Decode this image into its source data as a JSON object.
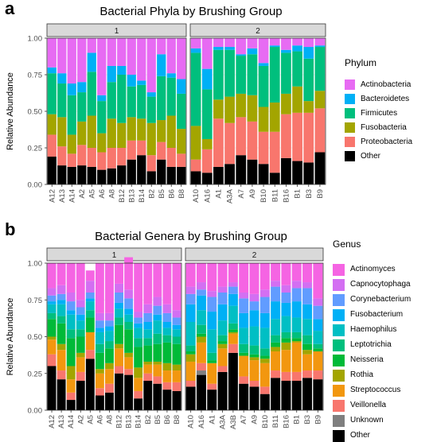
{
  "figure": {
    "panel_a_letter": "a",
    "panel_b_letter": "b"
  },
  "chart_data": [
    {
      "type": "bar",
      "stacked": true,
      "title": "Bacterial Phyla by Brushing Group",
      "ylabel": "Relative Abundance",
      "xlabel": "",
      "ylim": [
        0,
        1
      ],
      "yticks": [
        "0.00",
        "0.25",
        "0.50",
        "0.75",
        "1.00"
      ],
      "grid": true,
      "legend_title": "Phylum",
      "legend_position": "right",
      "facets": [
        {
          "label": "1",
          "categories": [
            "A12",
            "A13",
            "A14",
            "A2",
            "A5",
            "A6",
            "A8",
            "B12",
            "B13",
            "B14",
            "B2",
            "B5",
            "B6",
            "B8"
          ]
        },
        {
          "label": "2",
          "categories": [
            "A10",
            "A16",
            "A1",
            "A3A",
            "A7",
            "A9",
            "B10",
            "B11",
            "B16",
            "B1",
            "B3",
            "B9"
          ]
        }
      ],
      "series": [
        {
          "name": "Other",
          "color": "#000000",
          "facet_values": [
            [
              0.19,
              0.13,
              0.12,
              0.13,
              0.12,
              0.1,
              0.11,
              0.13,
              0.17,
              0.2,
              0.09,
              0.17,
              0.12,
              0.12
            ],
            [
              0.09,
              0.08,
              0.12,
              0.14,
              0.2,
              0.17,
              0.14,
              0.08,
              0.18,
              0.16,
              0.15,
              0.22
            ]
          ]
        },
        {
          "name": "Proteobacteria",
          "color": "#F8766D",
          "facet_values": [
            [
              0.15,
              0.13,
              0.09,
              0.14,
              0.13,
              0.12,
              0.14,
              0.12,
              0.13,
              0.1,
              0.11,
              0.12,
              0.13,
              0.09
            ],
            [
              0.08,
              0.16,
              0.33,
              0.28,
              0.26,
              0.26,
              0.22,
              0.28,
              0.3,
              0.33,
              0.34,
              0.3
            ]
          ]
        },
        {
          "name": "Fusobacteria",
          "color": "#A3A500",
          "facet_values": [
            [
              0.14,
              0.2,
              0.13,
              0.16,
              0.22,
              0.13,
              0.2,
              0.17,
              0.16,
              0.15,
              0.22,
              0.15,
              0.22,
              0.17
            ],
            [
              0.23,
              0.07,
              0.13,
              0.18,
              0.16,
              0.18,
              0.17,
              0.2,
              0.14,
              0.18,
              0.08,
              0.12
            ]
          ]
        },
        {
          "name": "Firmicutes",
          "color": "#00BF7D",
          "facet_values": [
            [
              0.28,
              0.23,
              0.27,
              0.2,
              0.3,
              0.22,
              0.25,
              0.33,
              0.21,
              0.23,
              0.18,
              0.3,
              0.26,
              0.24
            ],
            [
              0.5,
              0.34,
              0.34,
              0.32,
              0.26,
              0.28,
              0.28,
              0.38,
              0.28,
              0.24,
              0.29,
              0.3
            ]
          ]
        },
        {
          "name": "Bacteroidetes",
          "color": "#00B0F6",
          "facet_values": [
            [
              0.04,
              0.07,
              0.08,
              0.07,
              0.13,
              0.04,
              0.11,
              0.06,
              0.08,
              0.03,
              0.03,
              0.15,
              0.03,
              0.1
            ],
            [
              0.03,
              0.14,
              0.02,
              0.02,
              0.01,
              0.04,
              0.02,
              0.01,
              0.02,
              0.04,
              0.08,
              0.01
            ]
          ]
        },
        {
          "name": "Actinobacteria",
          "color": "#E76BF3",
          "facet_values": [
            [
              0.2,
              0.24,
              0.31,
              0.3,
              0.1,
              0.39,
              0.19,
              0.19,
              0.25,
              0.29,
              0.37,
              0.11,
              0.24,
              0.28
            ],
            [
              0.07,
              0.21,
              0.06,
              0.06,
              0.11,
              0.07,
              0.17,
              0.05,
              0.08,
              0.05,
              0.06,
              0.05
            ]
          ]
        }
      ]
    },
    {
      "type": "bar",
      "stacked": true,
      "title": "Bacterial Genera by Brushing Group",
      "ylabel": "Relative Abundance",
      "xlabel": "",
      "ylim": [
        0,
        1
      ],
      "yticks": [
        "0.00",
        "0.25",
        "0.50",
        "0.75",
        "1.00"
      ],
      "grid": true,
      "legend_title": "Genus",
      "legend_position": "right",
      "facets": [
        {
          "label": "1",
          "categories": [
            "A12",
            "A13",
            "A14",
            "A2",
            "A5",
            "A6",
            "A8",
            "B12",
            "B13",
            "B14",
            "B2",
            "B5",
            "B6",
            "B8"
          ]
        },
        {
          "label": "2",
          "categories": [
            "A10",
            "A16",
            "A1",
            "A3A",
            "A3B",
            "A7",
            "A9",
            "B10",
            "B11",
            "B16",
            "B1",
            "B3",
            "B9"
          ]
        }
      ],
      "series": [
        {
          "name": "Other",
          "color": "#000000",
          "facet_values": [
            [
              0.3,
              0.21,
              0.07,
              0.2,
              0.35,
              0.1,
              0.12,
              0.25,
              0.24,
              0.08,
              0.2,
              0.18,
              0.14,
              0.13
            ],
            [
              0.16,
              0.24,
              0.14,
              0.26,
              0.39,
              0.18,
              0.16,
              0.11,
              0.22,
              0.2,
              0.2,
              0.22,
              0.21
            ]
          ]
        },
        {
          "name": "Unknown",
          "color": "#7F7F7F",
          "facet_values": [
            [
              0.0,
              0.0,
              0.0,
              0.0,
              0.0,
              0.0,
              0.0,
              0.0,
              0.0,
              0.0,
              0.0,
              0.0,
              0.0,
              0.0
            ],
            [
              0.0,
              0.03,
              0.0,
              0.0,
              0.0,
              0.0,
              0.0,
              0.0,
              0.0,
              0.0,
              0.0,
              0.0,
              0.0
            ]
          ]
        },
        {
          "name": "Veillonella",
          "color": "#F8766D",
          "facet_values": [
            [
              0.08,
              0.06,
              0.05,
              0.06,
              0.06,
              0.05,
              0.06,
              0.05,
              0.04,
              0.05,
              0.05,
              0.05,
              0.05,
              0.06
            ],
            [
              0.04,
              0.05,
              0.04,
              0.04,
              0.06,
              0.05,
              0.04,
              0.05,
              0.05,
              0.06,
              0.06,
              0.05,
              0.06
            ]
          ]
        },
        {
          "name": "Streptococcus",
          "color": "#F2970F",
          "facet_values": [
            [
              0.1,
              0.14,
              0.09,
              0.1,
              0.12,
              0.1,
              0.1,
              0.12,
              0.08,
              0.09,
              0.06,
              0.08,
              0.08,
              0.08
            ],
            [
              0.13,
              0.14,
              0.14,
              0.12,
              0.07,
              0.14,
              0.14,
              0.16,
              0.13,
              0.15,
              0.2,
              0.11,
              0.13
            ]
          ]
        },
        {
          "name": "Rothia",
          "color": "#A3A500",
          "facet_values": [
            [
              0.02,
              0.04,
              0.09,
              0.03,
              0.0,
              0.03,
              0.04,
              0.03,
              0.03,
              0.07,
              0.02,
              0.02,
              0.05,
              0.04
            ],
            [
              0.05,
              0.04,
              0.0,
              0.03,
              0.01,
              0.0,
              0.02,
              0.03,
              0.03,
              0.05,
              0.01,
              0.03,
              0.0
            ]
          ]
        },
        {
          "name": "Neisseria",
          "color": "#00BA38",
          "facet_values": [
            [
              0.12,
              0.14,
              0.19,
              0.11,
              0.1,
              0.11,
              0.1,
              0.13,
              0.16,
              0.14,
              0.11,
              0.12,
              0.14,
              0.14
            ],
            [
              0.02,
              0.02,
              0.02,
              0.02,
              0.02,
              0.02,
              0.02,
              0.02,
              0.03,
              0.03,
              0.02,
              0.04,
              0.02
            ]
          ]
        },
        {
          "name": "Leptotrichia",
          "color": "#00BF7D",
          "facet_values": [
            [
              0.04,
              0.05,
              0.06,
              0.05,
              0.05,
              0.06,
              0.05,
              0.05,
              0.05,
              0.06,
              0.05,
              0.07,
              0.05,
              0.05
            ],
            [
              0.04,
              0.06,
              0.05,
              0.04,
              0.04,
              0.06,
              0.06,
              0.05,
              0.05,
              0.04,
              0.04,
              0.06,
              0.03
            ]
          ]
        },
        {
          "name": "Haemophilus",
          "color": "#00BFC4",
          "facet_values": [
            [
              0.06,
              0.08,
              0.1,
              0.06,
              0.06,
              0.08,
              0.07,
              0.06,
              0.05,
              0.07,
              0.06,
              0.09,
              0.05,
              0.05
            ],
            [
              0.16,
              0.1,
              0.16,
              0.1,
              0.12,
              0.11,
              0.13,
              0.14,
              0.11,
              0.11,
              0.1,
              0.11,
              0.09
            ]
          ]
        },
        {
          "name": "Fusobacterium",
          "color": "#00B0F6",
          "facet_values": [
            [
              0.02,
              0.03,
              0.03,
              0.04,
              0.02,
              0.03,
              0.03,
              0.04,
              0.04,
              0.03,
              0.05,
              0.04,
              0.04,
              0.03
            ],
            [
              0.12,
              0.1,
              0.12,
              0.11,
              0.08,
              0.1,
              0.11,
              0.1,
              0.12,
              0.09,
              0.11,
              0.1,
              0.08
            ]
          ]
        },
        {
          "name": "Corynebacterium",
          "color": "#619CFF",
          "facet_values": [
            [
              0.04,
              0.04,
              0.06,
              0.05,
              0.04,
              0.05,
              0.04,
              0.07,
              0.07,
              0.04,
              0.06,
              0.06,
              0.06,
              0.05
            ],
            [
              0.07,
              0.04,
              0.1,
              0.08,
              0.05,
              0.1,
              0.06,
              0.11,
              0.1,
              0.07,
              0.09,
              0.11,
              0.09
            ]
          ]
        },
        {
          "name": "Capnocytophaga",
          "color": "#D36FF2",
          "facet_values": [
            [
              0.05,
              0.06,
              0.06,
              0.05,
              0.08,
              0.05,
              0.05,
              0.06,
              0.06,
              0.04,
              0.06,
              0.06,
              0.06,
              0.05
            ],
            [
              0.05,
              0.05,
              0.04,
              0.04,
              0.03,
              0.04,
              0.05,
              0.05,
              0.04,
              0.05,
              0.05,
              0.04,
              0.05
            ]
          ]
        },
        {
          "name": "Actinomyces",
          "color": "#F564E3",
          "facet_values": [
            [
              0.17,
              0.15,
              0.2,
              0.25,
              0.07,
              0.34,
              0.34,
              0.14,
              0.22,
              0.33,
              0.28,
              0.23,
              0.28,
              0.32
            ],
            [
              0.16,
              0.13,
              0.19,
              0.16,
              0.13,
              0.2,
              0.21,
              0.18,
              0.12,
              0.15,
              0.12,
              0.13,
              0.24
            ]
          ]
        }
      ]
    }
  ]
}
